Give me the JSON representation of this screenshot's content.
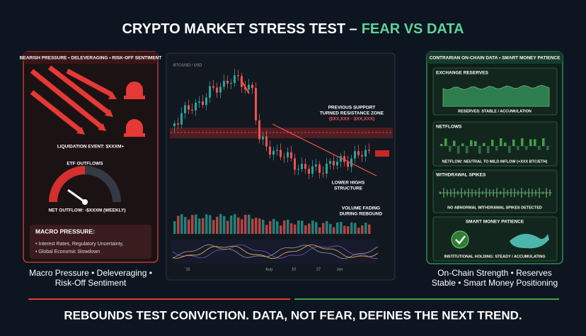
{
  "title": {
    "lead": "CRYPTO MARKET STRESS TEST –",
    "accent": "FEAR VS DATA"
  },
  "left_panel": {
    "header": "BEARISH PRESSURE • DELEVERAGING • RISK-OFF SENTIMENT",
    "liquidation": "LIQUIDATION EVENT: $XXXM+",
    "etf_title": "ETF OUTFLOWS",
    "net_outflow": "NET OUTFLOW: -$XXXM (WEEKLY)",
    "macro": {
      "title": "MACRO PRESSURE:",
      "items": [
        "• Interest Rates, Regulatory Uncertainty,",
        "• Global Economic Slowdown"
      ]
    },
    "caption": [
      "Macro Pressure • Deleveraging •",
      "Risk-Off Sentiment"
    ]
  },
  "center_panel": {
    "pair": "BTC/USD / USD",
    "resistance": [
      "PREVIOUS SUPPORT",
      "TURNED RESISTANCE ZONE",
      "($XX,XXX - $XX,XXX)"
    ],
    "lower_highs": [
      "LOWER HIGHS",
      "STRUCTURE"
    ],
    "volume": [
      "VOLUME FADING",
      "DURING REBOUND"
    ],
    "x_labels": [
      "'15",
      "Aug",
      "10",
      "27",
      "Jan"
    ]
  },
  "right_panel": {
    "header": "CONTRARIAN ON-CHAIN DATA • SMART MONEY PATIENCE",
    "reserves": {
      "title": "EXCHANGE RESERVES",
      "note": "RESERVES: STABLE / ACCUMULATION"
    },
    "netflows": {
      "title": "NETFLOWS",
      "note": "NETFLOW: NEUTRAL TO MILD INFLOW (+XXX BTC/ETH)"
    },
    "withdrawals": {
      "title": "WITHDRAWAL SPIKES",
      "note": "NO ABNORMAL WITHDRAWAL SPIKES DETECTED"
    },
    "smart_money": {
      "title": "SMART MONEY PATIENCE",
      "note": "INSTITUTIONAL HOLDING: STEADY / ACCUMULATING"
    },
    "caption": [
      "On-Chain Strength • Reserves",
      "Stable • Smart Money Positioning"
    ]
  },
  "footer": "REBOUNDS TEST CONVICTION. DATA, NOT FEAR, DEFINES THE NEXT TREND."
}
